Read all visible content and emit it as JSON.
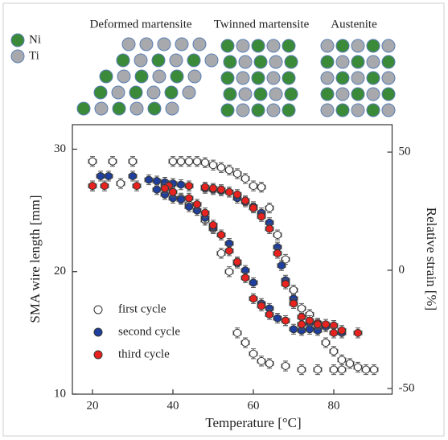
{
  "illustration": {
    "panels": [
      "Deformed martensite",
      "Twinned martensite",
      "Austenite"
    ],
    "legend": [
      {
        "name": "Ni",
        "color": "#3a8a3a"
      },
      {
        "name": "Ti",
        "color": "#a7a9ad"
      }
    ]
  },
  "chart_data": {
    "type": "scatter",
    "xlabel": "Temperature [°C]",
    "ylabel": "SMA wire length [mm]",
    "y2label": "Relative strain [%]",
    "xlim": [
      15,
      94.5
    ],
    "xticks": [
      20,
      40,
      60,
      80
    ],
    "ylim": [
      10,
      32
    ],
    "yticks": [
      10,
      20,
      30
    ],
    "y2lim": [
      -52.4,
      61.6
    ],
    "y2ticks": [
      -50,
      0,
      50
    ],
    "legend": "lower left",
    "series": [
      {
        "name": "first cycle",
        "color": "#ffffff",
        "xerr": 1,
        "yerr": 0.4,
        "x": [
          20,
          25,
          27,
          30,
          40,
          42,
          44,
          46,
          48,
          50,
          52,
          54,
          56,
          58,
          60,
          62,
          64,
          66,
          68,
          70,
          72,
          74,
          76,
          78,
          80,
          82,
          84,
          86,
          88,
          90,
          38,
          40,
          42,
          44,
          46,
          48,
          50,
          52,
          54,
          56,
          58,
          60,
          62,
          64,
          68,
          72,
          76,
          80,
          82
        ],
        "values": [
          29.0,
          29.0,
          27.2,
          29.0,
          29.0,
          29.0,
          29.0,
          29.0,
          28.9,
          28.7,
          28.5,
          28.3,
          28.0,
          27.6,
          27.0,
          26.9,
          25.2,
          23.0,
          21.0,
          18.5,
          17.0,
          16.5,
          15.5,
          14.2,
          13.5,
          12.8,
          12.5,
          12.2,
          12.0,
          12.0,
          27.0,
          26.5,
          26.0,
          25.5,
          25.0,
          24.2,
          23.5,
          21.5,
          20.0,
          15.0,
          14.2,
          13.3,
          12.7,
          12.5,
          12.3,
          12.0,
          12.0,
          12.0,
          12.0
        ]
      },
      {
        "name": "second cycle",
        "color": "#1f3f9f",
        "xerr": 1,
        "yerr": 0.4,
        "x": [
          20,
          22,
          24,
          30,
          34,
          36,
          38,
          40,
          42,
          44,
          48,
          50,
          52,
          54,
          56,
          58,
          60,
          62,
          64,
          66,
          67,
          68,
          70,
          72,
          74,
          76,
          78,
          80,
          82,
          36,
          38,
          40,
          42,
          44,
          46,
          48,
          50,
          52,
          54,
          56,
          58,
          60,
          62,
          64,
          66,
          68,
          70,
          72,
          74
        ],
        "values": [
          27.0,
          27.8,
          27.8,
          27.8,
          27.5,
          27.4,
          27.3,
          27.2,
          27.1,
          27.0,
          26.8,
          26.7,
          26.6,
          26.5,
          26.0,
          25.7,
          25.3,
          24.8,
          24.0,
          22.0,
          20.5,
          19.3,
          17.8,
          16.3,
          15.8,
          15.2,
          15.5,
          15.6,
          15.0,
          26.7,
          26.3,
          26.0,
          25.9,
          25.3,
          25.0,
          24.4,
          23.6,
          23.0,
          22.3,
          20.7,
          20.1,
          19.1,
          17.4,
          17.0,
          16.2,
          16.0,
          15.3,
          15.2,
          15.3
        ]
      },
      {
        "name": "third cycle",
        "color": "#e8231f",
        "xerr": 1,
        "yerr": 0.4,
        "x": [
          20,
          23,
          31,
          39,
          44,
          48,
          50,
          52,
          54,
          56,
          58,
          60,
          62,
          64,
          66,
          68,
          70,
          72,
          74,
          76,
          78,
          80,
          82,
          86,
          38,
          40,
          44,
          46,
          48,
          50,
          52,
          54,
          56,
          58,
          60,
          62,
          64,
          68,
          72,
          76,
          80
        ],
        "values": [
          27.0,
          27.0,
          27.0,
          27.0,
          27.0,
          26.9,
          26.8,
          26.7,
          26.5,
          26.3,
          25.8,
          25.2,
          24.5,
          23.5,
          21.5,
          19.0,
          17.4,
          16.3,
          16.0,
          15.8,
          15.7,
          15.6,
          15.2,
          15.0,
          26.8,
          26.5,
          26.0,
          25.5,
          24.8,
          23.8,
          23.0,
          21.7,
          20.8,
          19.5,
          17.8,
          17.2,
          16.5,
          16.0,
          15.7,
          15.7,
          15.0
        ]
      }
    ]
  }
}
